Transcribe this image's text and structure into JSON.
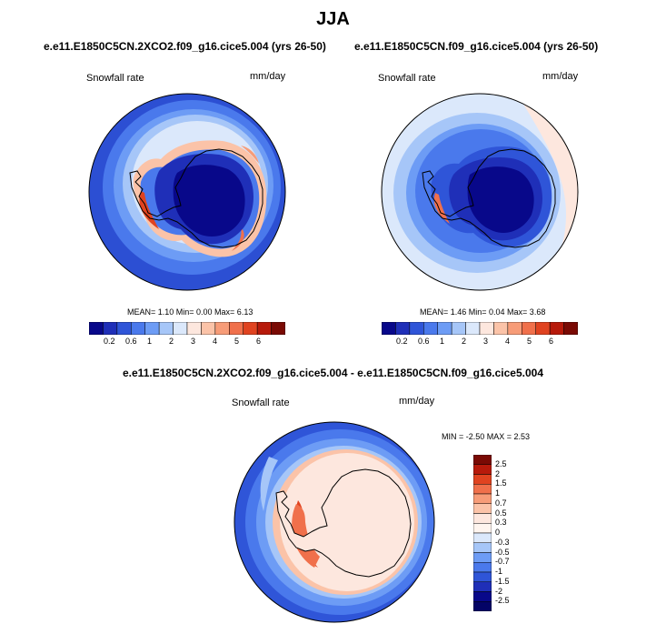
{
  "figure": {
    "title": "JJA",
    "variable": "Snowfall rate",
    "units": "mm/day"
  },
  "palette": {
    "horizontal": [
      "#08088a",
      "#1f2fb8",
      "#2f55d8",
      "#4a79ec",
      "#6d9cf5",
      "#a6c6f8",
      "#dbe8fb",
      "#fde7de",
      "#fbc3a8",
      "#f79c78",
      "#f0704b",
      "#e04320",
      "#b71a0b",
      "#7a0a04"
    ],
    "vertical": [
      "#08088a",
      "#1f2fb8",
      "#2f55d8",
      "#4a79ec",
      "#6d9cf5",
      "#a6c6f8",
      "#dbe8fb",
      "#fde7de",
      "#fbc3a8",
      "#f79c78",
      "#f0704b",
      "#e04320",
      "#b71a0b",
      "#7a0a04"
    ]
  },
  "panels": {
    "left": {
      "title": "e.e11.E1850C5CN.2XCO2.f09_g16.cice5.004 (yrs 26-50)",
      "var_label": "Snowfall rate",
      "units_label": "mm/day",
      "stats": "MEAN=  1.10  Min=   0.00  Max=  6.13",
      "colorbar_labels": [
        "0.2",
        "0.6",
        "1",
        "2",
        "3",
        "4",
        "5",
        "6"
      ]
    },
    "right": {
      "title": "e.e11.E1850C5CN.f09_g16.cice5.004 (yrs 26-50)",
      "var_label": "Snowfall rate",
      "units_label": "mm/day",
      "stats": "MEAN=  1.46  Min=   0.04  Max=  3.68",
      "colorbar_labels": [
        "0.2",
        "0.6",
        "1",
        "2",
        "3",
        "4",
        "5",
        "6"
      ]
    },
    "diff": {
      "title": "e.e11.E1850C5CN.2XCO2.f09_g16.cice5.004 - e.e11.E1850C5CN.f09_g16.cice5.004",
      "var_label": "Snowfall rate",
      "units_label": "mm/day",
      "stats": "MIN =  -2.50 MAX =   2.53",
      "colorbar_labels": [
        "2.5",
        "2",
        "1.5",
        "1",
        "0.7",
        "0.5",
        "0.3",
        "0",
        "-0.3",
        "-0.5",
        "-0.7",
        "-1",
        "-1.5",
        "-2",
        "-2.5"
      ]
    }
  }
}
